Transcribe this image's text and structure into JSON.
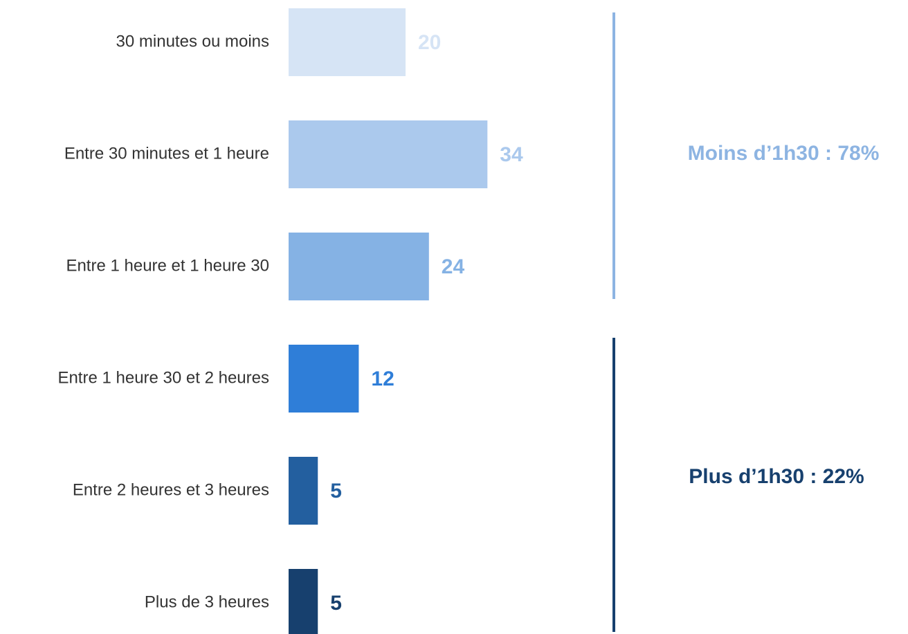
{
  "chart_data": {
    "type": "bar",
    "orientation": "horizontal",
    "categories": [
      "30 minutes ou moins",
      "Entre 30 minutes et 1 heure",
      "Entre 1 heure et 1 heure 30",
      "Entre 1 heure 30 et 2 heures",
      "Entre 2 heures et 3 heures",
      "Plus de 3 heures"
    ],
    "values": [
      20,
      34,
      24,
      12,
      5,
      5
    ],
    "colors": [
      "#d6e4f5",
      "#abc9ed",
      "#85b2e4",
      "#2f7ed8",
      "#235f9f",
      "#17406e"
    ],
    "annotations": [
      {
        "text": "Moins d’1h30 : 78%",
        "color": "#8db4e2"
      },
      {
        "text": "Plus d’1h30 : 22%",
        "color": "#17406e"
      }
    ]
  }
}
